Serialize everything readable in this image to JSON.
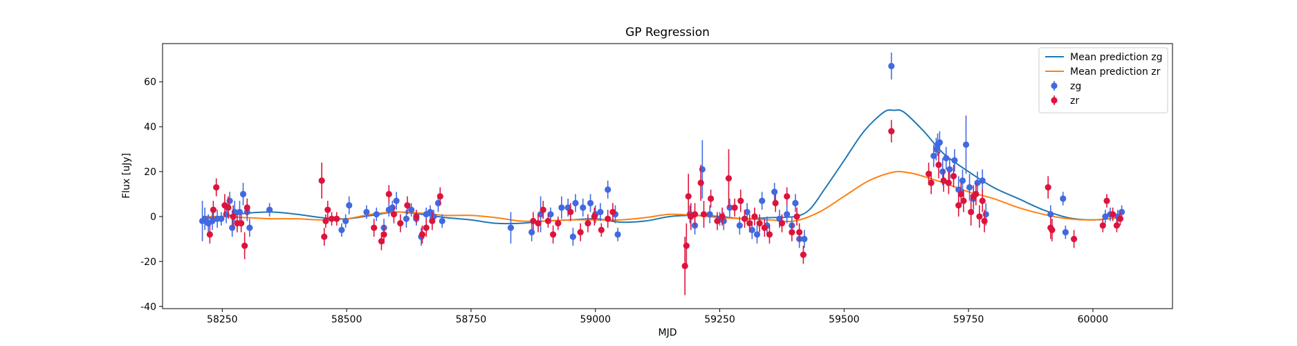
{
  "chart_data": {
    "type": "scatter",
    "title": "GP Regression",
    "xlabel": "MJD",
    "ylabel": "Flux [uJy]",
    "xlim": [
      58130,
      60160
    ],
    "ylim": [
      -41,
      77
    ],
    "xticks": [
      58250,
      58500,
      58750,
      59000,
      59250,
      59500,
      59750,
      60000
    ],
    "yticks": [
      -40,
      -20,
      0,
      20,
      40,
      60
    ],
    "grid": false,
    "legend_position": "top-right",
    "legend": [
      {
        "label": "Mean prediction zg",
        "kind": "line",
        "color": "#1f77b4"
      },
      {
        "label": "Mean prediction zr",
        "kind": "line",
        "color": "#ff7f0e"
      },
      {
        "label": "zg",
        "kind": "errorbar",
        "color": "#4169e1"
      },
      {
        "label": "zr",
        "kind": "errorbar",
        "color": "#dc143c"
      }
    ],
    "lines": [
      {
        "name": "Mean prediction zg",
        "color": "#1f77b4",
        "x": [
          58210,
          58250,
          58300,
          58350,
          58400,
          58450,
          58500,
          58550,
          58600,
          58650,
          58700,
          58750,
          58800,
          58850,
          58900,
          58950,
          59000,
          59050,
          59100,
          59150,
          59200,
          59250,
          59300,
          59350,
          59400,
          59430,
          59460,
          59500,
          59540,
          59580,
          59600,
          59620,
          59660,
          59700,
          59750,
          59800,
          59850,
          59900,
          59950,
          60000,
          60050
        ],
        "y": [
          -1,
          0,
          1.5,
          2,
          1,
          -0.5,
          -1,
          0.5,
          2,
          1,
          -0.5,
          -1.5,
          -3,
          -3,
          -2,
          -1.5,
          -1,
          -2.5,
          -2,
          0,
          0.5,
          0,
          -1,
          -0.5,
          0,
          3,
          12,
          25,
          38,
          46.5,
          47.3,
          46.5,
          38,
          28,
          20,
          13,
          8,
          3,
          -0.5,
          -1.5,
          -0.5
        ]
      },
      {
        "name": "Mean prediction zr",
        "color": "#ff7f0e",
        "x": [
          58210,
          58250,
          58300,
          58350,
          58400,
          58450,
          58500,
          58550,
          58600,
          58650,
          58700,
          58750,
          58800,
          58850,
          58900,
          58950,
          59000,
          59050,
          59100,
          59150,
          59200,
          59250,
          59300,
          59350,
          59400,
          59450,
          59500,
          59550,
          59600,
          59630,
          59650,
          59700,
          59750,
          59800,
          59850,
          59900,
          59950,
          60000,
          60050
        ],
        "y": [
          0,
          0,
          -0.5,
          -1,
          -1,
          -1.5,
          -1,
          1,
          2,
          1.5,
          0.5,
          0.5,
          -0.5,
          -2,
          -2,
          -1.5,
          -1.5,
          -1.5,
          -0.5,
          1,
          0.5,
          -0.5,
          -1,
          -1.5,
          -2,
          2,
          9,
          16,
          19.8,
          19.5,
          18.5,
          15,
          11,
          8,
          4,
          1,
          -1,
          -1.5,
          -0.5
        ]
      }
    ],
    "series": [
      {
        "name": "zg",
        "color": "#4169e1",
        "points": [
          [
            58210,
            -2,
            9
          ],
          [
            58215,
            -1,
            5
          ],
          [
            58222,
            -3,
            4
          ],
          [
            58230,
            -2,
            4
          ],
          [
            58240,
            -1,
            4
          ],
          [
            58248,
            -1,
            3
          ],
          [
            58258,
            1,
            4
          ],
          [
            58265,
            7,
            4
          ],
          [
            58270,
            -5,
            4
          ],
          [
            58275,
            2,
            5
          ],
          [
            58285,
            2,
            5
          ],
          [
            58292,
            10,
            5
          ],
          [
            58300,
            2,
            4
          ],
          [
            58305,
            -5,
            4
          ],
          [
            58345,
            3,
            3
          ],
          [
            58490,
            -6,
            3
          ],
          [
            58498,
            -2,
            3
          ],
          [
            58505,
            5,
            4
          ],
          [
            58540,
            2,
            3
          ],
          [
            58560,
            1,
            3
          ],
          [
            58575,
            -5,
            4
          ],
          [
            58585,
            3,
            3
          ],
          [
            58592,
            4,
            3
          ],
          [
            58600,
            7,
            4
          ],
          [
            58620,
            -1,
            4
          ],
          [
            58630,
            3,
            3
          ],
          [
            58640,
            -1,
            3
          ],
          [
            58650,
            -9,
            4
          ],
          [
            58660,
            1,
            3
          ],
          [
            58668,
            2,
            3
          ],
          [
            58675,
            0,
            3
          ],
          [
            58684,
            6,
            4
          ],
          [
            58692,
            -2,
            3
          ],
          [
            58830,
            -5,
            7
          ],
          [
            58872,
            -7,
            4
          ],
          [
            58890,
            1,
            8
          ],
          [
            58910,
            1,
            3
          ],
          [
            58932,
            4,
            5
          ],
          [
            58945,
            4,
            4
          ],
          [
            58955,
            -9,
            4
          ],
          [
            58960,
            6,
            4
          ],
          [
            58975,
            4,
            4
          ],
          [
            58990,
            6,
            4
          ],
          [
            59000,
            1,
            4
          ],
          [
            59010,
            2,
            4
          ],
          [
            59025,
            12,
            4
          ],
          [
            59040,
            1,
            4
          ],
          [
            59045,
            -8,
            3
          ],
          [
            59190,
            1,
            4
          ],
          [
            59200,
            -4,
            4
          ],
          [
            59215,
            21,
            13
          ],
          [
            59230,
            1,
            4
          ],
          [
            59250,
            -1,
            3
          ],
          [
            59258,
            -2,
            4
          ],
          [
            59270,
            4,
            4
          ],
          [
            59290,
            -4,
            4
          ],
          [
            59305,
            2,
            4
          ],
          [
            59315,
            -6,
            4
          ],
          [
            59325,
            -8,
            4
          ],
          [
            59335,
            7,
            4
          ],
          [
            59345,
            -4,
            4
          ],
          [
            59360,
            11,
            4
          ],
          [
            59370,
            -1,
            4
          ],
          [
            59385,
            1,
            4
          ],
          [
            59395,
            -4,
            4
          ],
          [
            59402,
            6,
            4
          ],
          [
            59410,
            -10,
            4
          ],
          [
            59420,
            -10,
            4
          ],
          [
            59595,
            67,
            6
          ],
          [
            59680,
            27,
            5
          ],
          [
            59685,
            30,
            5
          ],
          [
            59688,
            32,
            5
          ],
          [
            59692,
            33,
            5
          ],
          [
            59698,
            20,
            6
          ],
          [
            59705,
            26,
            5
          ],
          [
            59712,
            21,
            5
          ],
          [
            59722,
            25,
            5
          ],
          [
            59730,
            12,
            6
          ],
          [
            59738,
            16,
            5
          ],
          [
            59745,
            32,
            13
          ],
          [
            59752,
            13,
            6
          ],
          [
            59760,
            8,
            5
          ],
          [
            59768,
            15,
            5
          ],
          [
            59778,
            16,
            5
          ],
          [
            59785,
            1,
            5
          ],
          [
            59915,
            1,
            4
          ],
          [
            59940,
            8,
            3
          ],
          [
            59945,
            -7,
            3
          ],
          [
            60025,
            0,
            3
          ],
          [
            60035,
            1,
            3
          ],
          [
            60050,
            0,
            3
          ],
          [
            60058,
            2,
            3
          ]
        ]
      },
      {
        "name": "zr",
        "color": "#dc143c",
        "points": [
          [
            58225,
            -8,
            4
          ],
          [
            58232,
            3,
            4
          ],
          [
            58238,
            13,
            4
          ],
          [
            58255,
            5,
            5
          ],
          [
            58262,
            4,
            5
          ],
          [
            58272,
            0,
            5
          ],
          [
            58280,
            -3,
            4
          ],
          [
            58288,
            -3,
            4
          ],
          [
            58295,
            -13,
            6
          ],
          [
            58300,
            4,
            4
          ],
          [
            58450,
            16,
            8
          ],
          [
            58455,
            -9,
            4
          ],
          [
            58458,
            -2,
            3
          ],
          [
            58462,
            3,
            4
          ],
          [
            58470,
            -1,
            3
          ],
          [
            58480,
            -1,
            3
          ],
          [
            58555,
            -5,
            4
          ],
          [
            58570,
            -11,
            4
          ],
          [
            58575,
            -8,
            4
          ],
          [
            58585,
            10,
            4
          ],
          [
            58595,
            1,
            4
          ],
          [
            58608,
            -3,
            4
          ],
          [
            58622,
            5,
            4
          ],
          [
            58640,
            0,
            3
          ],
          [
            58652,
            -8,
            4
          ],
          [
            58660,
            -5,
            4
          ],
          [
            58672,
            -2,
            4
          ],
          [
            58688,
            9,
            4
          ],
          [
            58875,
            -2,
            4
          ],
          [
            58885,
            -3,
            4
          ],
          [
            58895,
            3,
            4
          ],
          [
            58905,
            -2,
            3
          ],
          [
            58915,
            -8,
            4
          ],
          [
            58925,
            -3,
            3
          ],
          [
            58950,
            2,
            4
          ],
          [
            58970,
            -7,
            4
          ],
          [
            58985,
            -3,
            4
          ],
          [
            58998,
            0,
            4
          ],
          [
            59012,
            -6,
            3
          ],
          [
            59025,
            -1,
            4
          ],
          [
            59035,
            2,
            4
          ],
          [
            59180,
            -22,
            13
          ],
          [
            59183,
            -13,
            10
          ],
          [
            59187,
            9,
            10
          ],
          [
            59192,
            0,
            6
          ],
          [
            59200,
            1,
            5
          ],
          [
            59212,
            15,
            8
          ],
          [
            59218,
            1,
            6
          ],
          [
            59232,
            8,
            4
          ],
          [
            59245,
            -2,
            4
          ],
          [
            59255,
            0,
            4
          ],
          [
            59268,
            17,
            13
          ],
          [
            59280,
            4,
            4
          ],
          [
            59292,
            7,
            5
          ],
          [
            59300,
            -1,
            4
          ],
          [
            59310,
            -3,
            4
          ],
          [
            59320,
            0,
            4
          ],
          [
            59330,
            -3,
            4
          ],
          [
            59340,
            -5,
            4
          ],
          [
            59350,
            -8,
            4
          ],
          [
            59362,
            6,
            4
          ],
          [
            59375,
            -3,
            4
          ],
          [
            59385,
            9,
            4
          ],
          [
            59395,
            -7,
            4
          ],
          [
            59405,
            0,
            4
          ],
          [
            59410,
            -7,
            4
          ],
          [
            59418,
            -17,
            4
          ],
          [
            59595,
            38,
            5
          ],
          [
            59670,
            19,
            5
          ],
          [
            59675,
            15,
            5
          ],
          [
            59690,
            23,
            6
          ],
          [
            59700,
            16,
            5
          ],
          [
            59710,
            15,
            5
          ],
          [
            59720,
            18,
            5
          ],
          [
            59730,
            5,
            5
          ],
          [
            59735,
            10,
            5
          ],
          [
            59740,
            7,
            5
          ],
          [
            59755,
            2,
            6
          ],
          [
            59760,
            9,
            5
          ],
          [
            59765,
            10,
            5
          ],
          [
            59772,
            0,
            5
          ],
          [
            59778,
            7,
            5
          ],
          [
            59782,
            -2,
            5
          ],
          [
            59910,
            13,
            5
          ],
          [
            59915,
            -5,
            5
          ],
          [
            59918,
            -6,
            5
          ],
          [
            59962,
            -10,
            4
          ],
          [
            60020,
            -4,
            3
          ],
          [
            60028,
            7,
            3
          ],
          [
            60040,
            1,
            3
          ],
          [
            60048,
            -4,
            3
          ],
          [
            60055,
            -1,
            3
          ]
        ]
      }
    ]
  }
}
